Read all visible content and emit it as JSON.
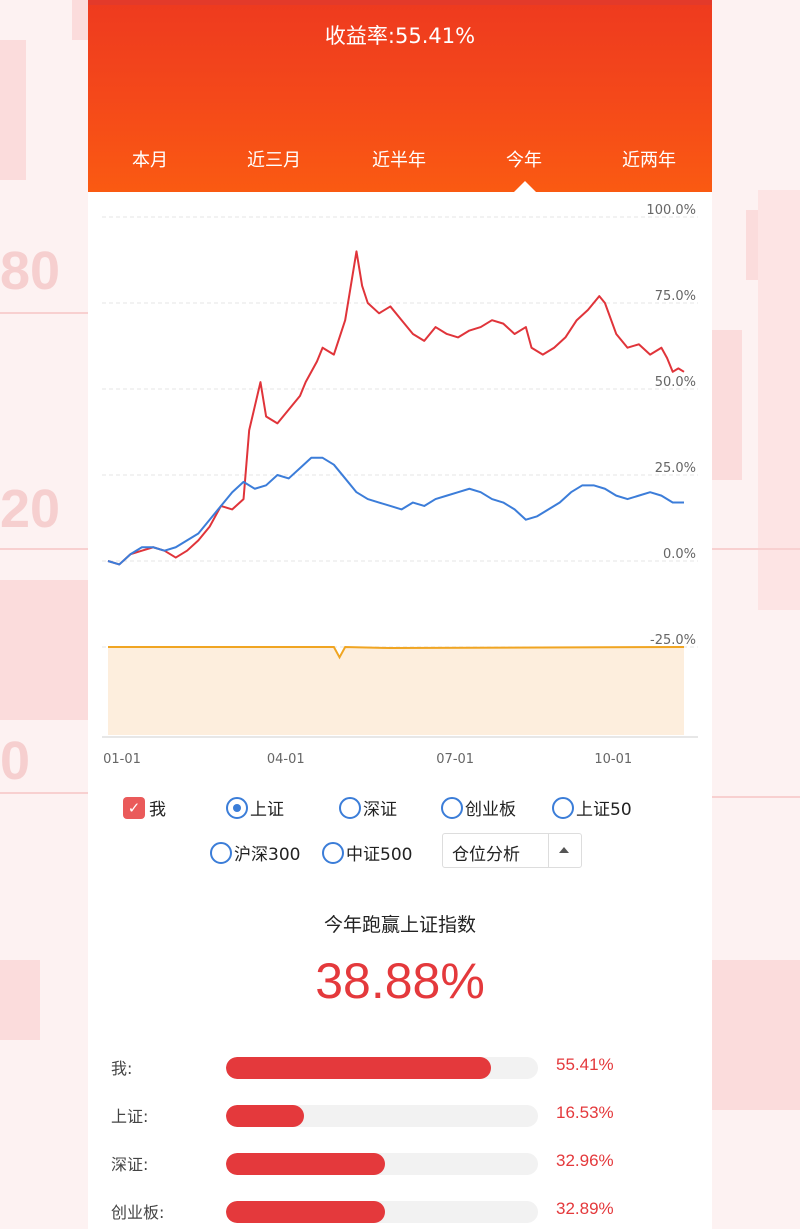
{
  "header": {
    "title": "收益率:55.41%"
  },
  "tabs": [
    {
      "label": "本月"
    },
    {
      "label": "近三月"
    },
    {
      "label": "近半年"
    },
    {
      "label": "今年",
      "active": true
    },
    {
      "label": "近两年"
    }
  ],
  "chart_data": {
    "type": "line",
    "y_axis_ticks": [
      "100.0%",
      "75.0%",
      "50.0%",
      "25.0%",
      "0.0%",
      "-25.0%"
    ],
    "x_axis_ticks": [
      "01-01",
      "04-01",
      "07-01",
      "10-01"
    ],
    "ylim": [
      -50,
      100
    ],
    "grid": true,
    "series": [
      {
        "name": "我",
        "color": "#e0343a",
        "points": [
          [
            0,
            0
          ],
          [
            2,
            -1
          ],
          [
            4,
            2
          ],
          [
            6,
            3
          ],
          [
            8,
            4
          ],
          [
            10,
            3
          ],
          [
            12,
            1
          ],
          [
            14,
            3
          ],
          [
            16,
            6
          ],
          [
            18,
            10
          ],
          [
            20,
            16
          ],
          [
            22,
            15
          ],
          [
            24,
            18
          ],
          [
            25,
            38
          ],
          [
            26,
            45
          ],
          [
            27,
            52
          ],
          [
            28,
            42
          ],
          [
            30,
            40
          ],
          [
            32,
            44
          ],
          [
            34,
            48
          ],
          [
            35,
            52
          ],
          [
            37,
            58
          ],
          [
            38,
            62
          ],
          [
            40,
            60
          ],
          [
            42,
            70
          ],
          [
            43,
            80
          ],
          [
            44,
            90
          ],
          [
            45,
            80
          ],
          [
            46,
            75
          ],
          [
            48,
            72
          ],
          [
            50,
            74
          ],
          [
            52,
            70
          ],
          [
            54,
            66
          ],
          [
            56,
            64
          ],
          [
            58,
            68
          ],
          [
            60,
            66
          ],
          [
            62,
            65
          ],
          [
            64,
            67
          ],
          [
            66,
            68
          ],
          [
            68,
            70
          ],
          [
            70,
            69
          ],
          [
            72,
            66
          ],
          [
            74,
            68
          ],
          [
            75,
            62
          ],
          [
            77,
            60
          ],
          [
            79,
            62
          ],
          [
            81,
            65
          ],
          [
            83,
            70
          ],
          [
            85,
            73
          ],
          [
            87,
            77
          ],
          [
            88,
            75
          ],
          [
            90,
            66
          ],
          [
            92,
            62
          ],
          [
            94,
            63
          ],
          [
            96,
            60
          ],
          [
            98,
            62
          ],
          [
            99,
            59
          ],
          [
            100,
            55
          ],
          [
            101,
            56
          ],
          [
            102,
            55
          ]
        ]
      },
      {
        "name": "上证",
        "color": "#3c7dd9",
        "points": [
          [
            0,
            0
          ],
          [
            2,
            -1
          ],
          [
            4,
            2
          ],
          [
            6,
            4
          ],
          [
            8,
            4
          ],
          [
            10,
            3
          ],
          [
            12,
            4
          ],
          [
            14,
            6
          ],
          [
            16,
            8
          ],
          [
            18,
            12
          ],
          [
            20,
            16
          ],
          [
            22,
            20
          ],
          [
            24,
            23
          ],
          [
            26,
            21
          ],
          [
            28,
            22
          ],
          [
            30,
            25
          ],
          [
            32,
            24
          ],
          [
            34,
            27
          ],
          [
            36,
            30
          ],
          [
            38,
            30
          ],
          [
            40,
            28
          ],
          [
            42,
            24
          ],
          [
            44,
            20
          ],
          [
            46,
            18
          ],
          [
            48,
            17
          ],
          [
            50,
            16
          ],
          [
            52,
            15
          ],
          [
            54,
            17
          ],
          [
            56,
            16
          ],
          [
            58,
            18
          ],
          [
            60,
            19
          ],
          [
            62,
            20
          ],
          [
            64,
            21
          ],
          [
            66,
            20
          ],
          [
            68,
            18
          ],
          [
            70,
            17
          ],
          [
            72,
            15
          ],
          [
            74,
            12
          ],
          [
            76,
            13
          ],
          [
            78,
            15
          ],
          [
            80,
            17
          ],
          [
            82,
            20
          ],
          [
            84,
            22
          ],
          [
            86,
            22
          ],
          [
            88,
            21
          ],
          [
            90,
            19
          ],
          [
            92,
            18
          ],
          [
            94,
            19
          ],
          [
            96,
            20
          ],
          [
            98,
            19
          ],
          [
            100,
            17
          ],
          [
            102,
            17
          ]
        ]
      },
      {
        "name": "仓位",
        "color": "#f0a522",
        "area": true,
        "points": [
          [
            0,
            -25
          ],
          [
            40,
            -25
          ],
          [
            41,
            -28
          ],
          [
            42,
            -25
          ],
          [
            50,
            -25.3
          ],
          [
            102,
            -25
          ]
        ]
      }
    ]
  },
  "options": {
    "me": {
      "label": "我",
      "checked": true
    },
    "shanghai": {
      "label": "上证",
      "selected": true
    },
    "shenzhen": {
      "label": "深证"
    },
    "chinext": {
      "label": "创业板"
    },
    "sse50": {
      "label": "上证50"
    },
    "csi300": {
      "label": "沪深300"
    },
    "csi500": {
      "label": "中证500"
    },
    "position_select": {
      "value": "仓位分析"
    }
  },
  "summary": {
    "title": "今年跑赢上证指数",
    "value": "38.88%"
  },
  "comparison": [
    {
      "label": "我:",
      "value": "55.41%",
      "fraction": 0.85
    },
    {
      "label": "上证:",
      "value": "16.53%",
      "fraction": 0.25
    },
    {
      "label": "深证:",
      "value": "32.96%",
      "fraction": 0.51
    },
    {
      "label": "创业板:",
      "value": "32.89%",
      "fraction": 0.51
    }
  ],
  "colors": {
    "accent": "#e4393c",
    "header": "#f4481a",
    "index": "#3c7dd9",
    "position": "#f0a522"
  }
}
